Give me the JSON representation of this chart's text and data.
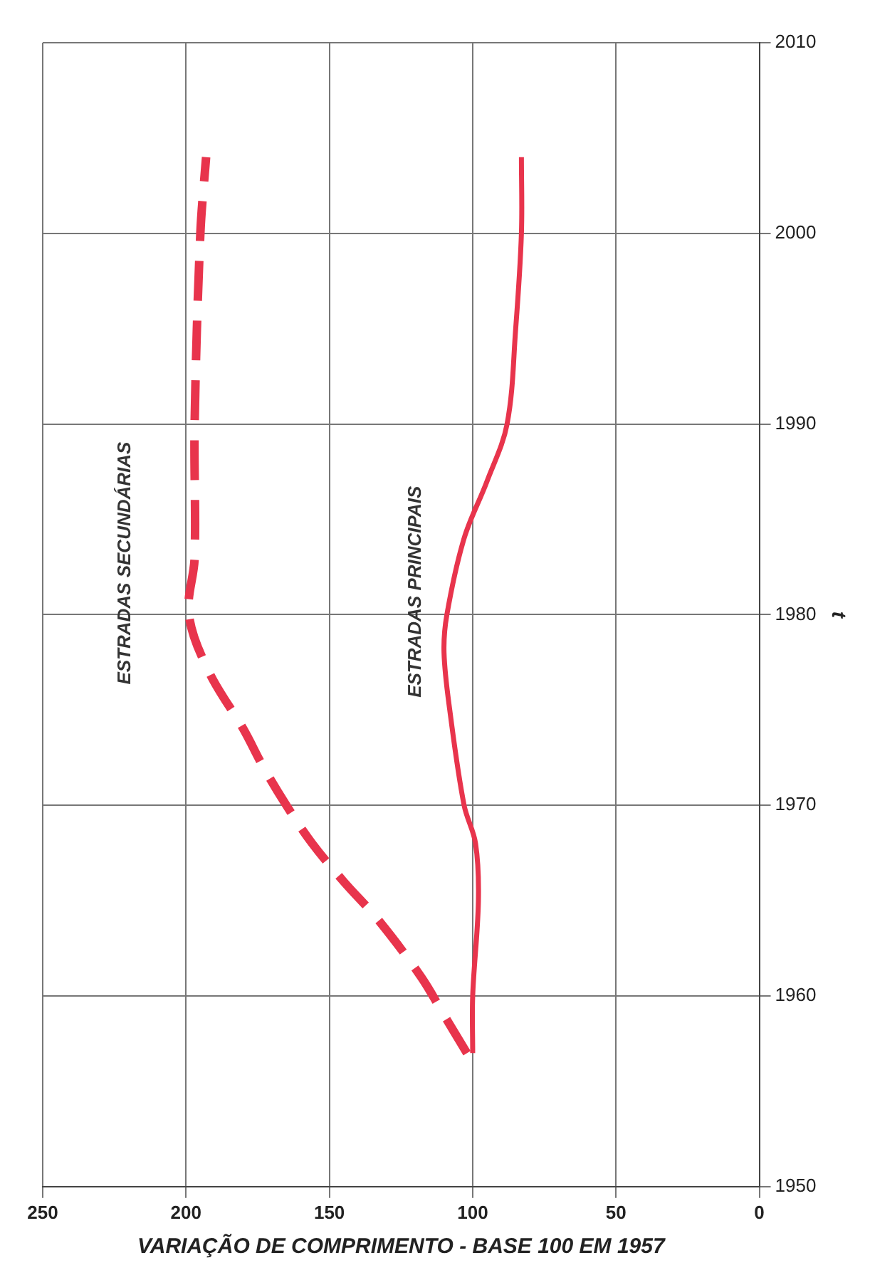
{
  "chart_data": {
    "type": "line",
    "xlabel": "VARIAÇÃO DE COMPRIMENTO - BASE 100 EM 1957",
    "ylabel": "t",
    "xlim": [
      250,
      0
    ],
    "xticks": [
      250,
      200,
      150,
      100,
      50,
      0
    ],
    "ylim": [
      1950,
      2010
    ],
    "yticks": [
      1950,
      1960,
      1970,
      1980,
      1990,
      2000,
      2010
    ],
    "grid": true,
    "legend": false,
    "marker": "none",
    "series": [
      {
        "color": "#e8344c",
        "line_style": "dashed",
        "x": [
          102,
          110,
          118,
          133,
          145,
          156,
          165,
          173,
          180,
          192,
          199,
          197,
          197,
          195,
          193
        ],
        "values": [
          1957,
          1959,
          1961,
          1964,
          1966,
          1968,
          1970,
          1972,
          1974,
          1977,
          1980,
          1983,
          1990,
          2000,
          2004
        ]
      },
      {
        "color": "#e8344c",
        "line_style": "solid",
        "x": [
          100,
          100,
          98,
          99,
          103,
          108,
          110,
          109,
          103,
          95,
          88,
          85,
          83,
          83
        ],
        "values": [
          1957,
          1960,
          1965,
          1968,
          1970,
          1975,
          1978,
          1980,
          1984,
          1987,
          1990,
          1995,
          2000,
          2004
        ]
      }
    ],
    "annotations": [
      "ESTRADAS SECUNDÁRIAS",
      "ESTRADAS PRINCIPAIS"
    ]
  }
}
